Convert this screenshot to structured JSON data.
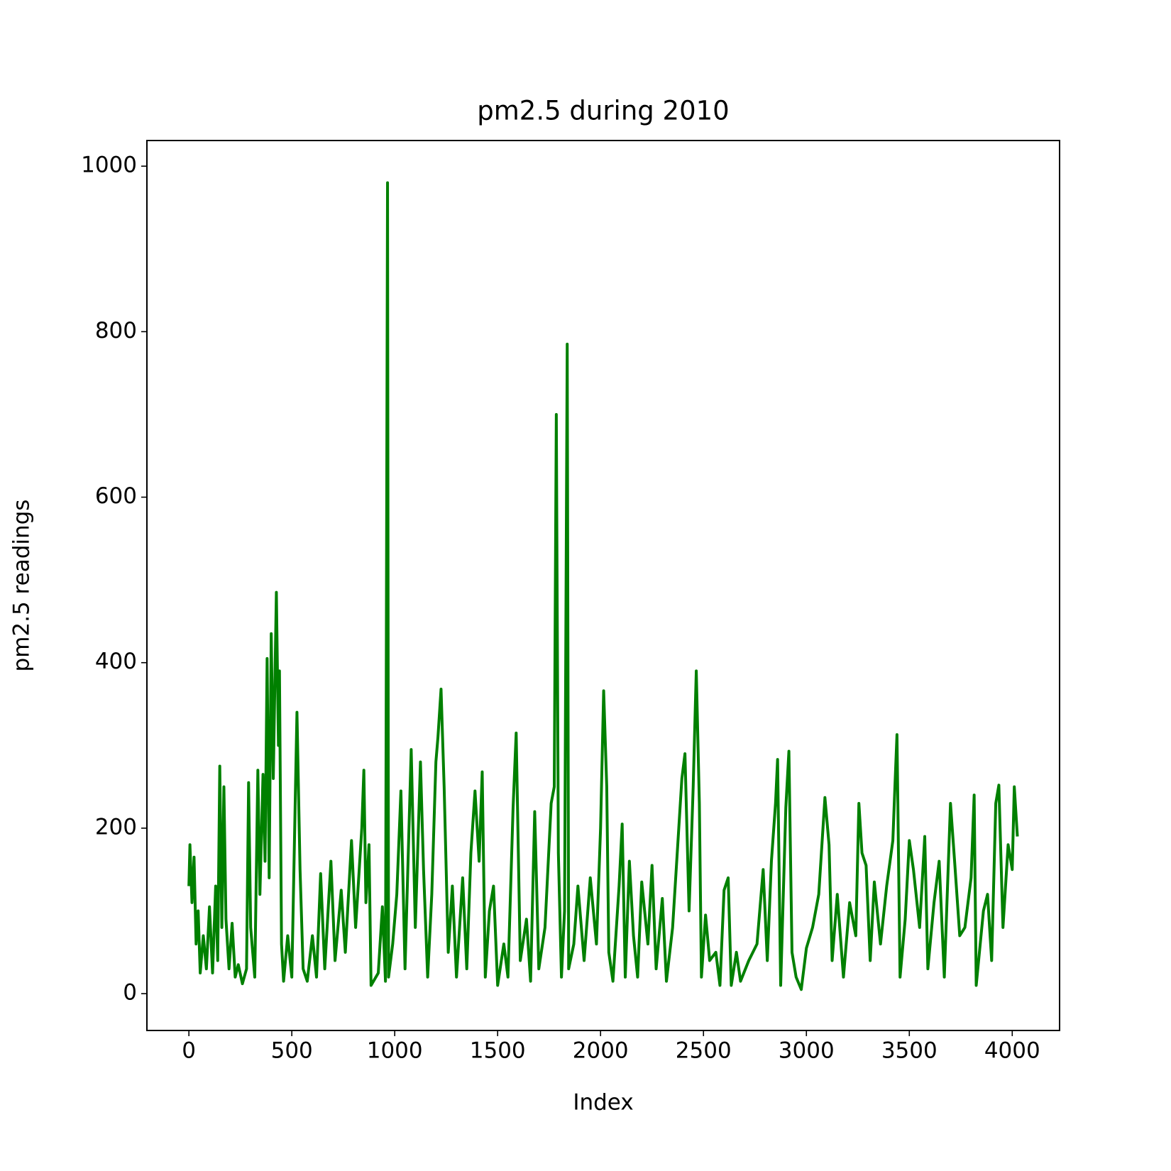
{
  "chart_data": {
    "type": "line",
    "title": "pm2.5 during 2010",
    "xlabel": "Index",
    "ylabel": "pm2.5 readings",
    "color": "#008000",
    "x": [
      0,
      5,
      15,
      25,
      35,
      45,
      55,
      70,
      85,
      100,
      115,
      130,
      140,
      150,
      160,
      170,
      180,
      195,
      210,
      225,
      240,
      260,
      280,
      290,
      300,
      320,
      335,
      345,
      360,
      370,
      380,
      390,
      400,
      410,
      425,
      435,
      440,
      450,
      460,
      480,
      500,
      525,
      540,
      555,
      575,
      600,
      620,
      640,
      660,
      690,
      710,
      740,
      760,
      790,
      810,
      840,
      850,
      860,
      875,
      885,
      920,
      940,
      955,
      965,
      970,
      990,
      1010,
      1030,
      1050,
      1080,
      1100,
      1125,
      1140,
      1160,
      1180,
      1200,
      1210,
      1225,
      1240,
      1260,
      1280,
      1300,
      1330,
      1350,
      1370,
      1390,
      1410,
      1425,
      1440,
      1460,
      1480,
      1500,
      1530,
      1550,
      1575,
      1590,
      1610,
      1640,
      1660,
      1680,
      1700,
      1730,
      1760,
      1775,
      1785,
      1795,
      1810,
      1825,
      1838,
      1845,
      1870,
      1890,
      1920,
      1950,
      1980,
      2000,
      2015,
      2030,
      2040,
      2060,
      2090,
      2105,
      2120,
      2140,
      2160,
      2180,
      2200,
      2230,
      2250,
      2270,
      2300,
      2320,
      2350,
      2380,
      2395,
      2410,
      2430,
      2450,
      2465,
      2480,
      2490,
      2510,
      2530,
      2560,
      2580,
      2600,
      2620,
      2635,
      2660,
      2680,
      2720,
      2760,
      2790,
      2810,
      2830,
      2850,
      2860,
      2875,
      2900,
      2915,
      2930,
      2950,
      2975,
      3000,
      3030,
      3060,
      3090,
      3110,
      3125,
      3150,
      3180,
      3210,
      3240,
      3255,
      3270,
      3290,
      3310,
      3330,
      3360,
      3390,
      3420,
      3430,
      3440,
      3455,
      3480,
      3500,
      3520,
      3550,
      3575,
      3590,
      3620,
      3645,
      3670,
      3700,
      3720,
      3745,
      3770,
      3800,
      3815,
      3825,
      3860,
      3880,
      3900,
      3920,
      3935,
      3955,
      3980,
      4000,
      4010,
      4025
    ],
    "values": [
      130,
      180,
      110,
      165,
      60,
      100,
      25,
      70,
      30,
      105,
      25,
      130,
      40,
      275,
      80,
      250,
      90,
      30,
      85,
      20,
      35,
      12,
      30,
      255,
      80,
      20,
      270,
      120,
      265,
      160,
      405,
      140,
      435,
      260,
      485,
      300,
      390,
      60,
      15,
      70,
      20,
      340,
      150,
      30,
      15,
      70,
      20,
      145,
      30,
      160,
      40,
      125,
      50,
      185,
      80,
      200,
      270,
      110,
      180,
      10,
      25,
      105,
      15,
      980,
      20,
      60,
      120,
      245,
      30,
      295,
      80,
      280,
      150,
      20,
      120,
      280,
      310,
      368,
      250,
      50,
      130,
      20,
      140,
      30,
      170,
      245,
      160,
      268,
      20,
      100,
      130,
      10,
      60,
      20,
      225,
      315,
      40,
      90,
      15,
      220,
      30,
      80,
      230,
      250,
      700,
      170,
      20,
      100,
      785,
      30,
      60,
      130,
      40,
      140,
      60,
      200,
      366,
      250,
      50,
      15,
      130,
      205,
      20,
      160,
      70,
      20,
      135,
      60,
      155,
      30,
      115,
      15,
      80,
      200,
      260,
      290,
      100,
      250,
      390,
      230,
      20,
      95,
      40,
      50,
      10,
      125,
      140,
      10,
      50,
      15,
      40,
      60,
      150,
      40,
      160,
      230,
      283,
      10,
      225,
      293,
      50,
      20,
      5,
      55,
      80,
      120,
      237,
      180,
      40,
      120,
      20,
      110,
      70,
      230,
      170,
      155,
      40,
      135,
      60,
      130,
      185,
      250,
      313,
      20,
      90,
      185,
      150,
      80,
      190,
      30,
      110,
      160,
      20,
      230,
      160,
      70,
      80,
      140,
      240,
      10,
      100,
      120,
      40,
      230,
      252,
      80,
      180,
      150,
      250,
      190
    ],
    "xlim": [
      -204,
      4230
    ],
    "ylim": [
      -44.5,
      1031
    ],
    "xticks": [
      0,
      500,
      1000,
      1500,
      2000,
      2500,
      3000,
      3500,
      4000
    ],
    "yticks": [
      0,
      200,
      400,
      600,
      800,
      1000
    ]
  }
}
